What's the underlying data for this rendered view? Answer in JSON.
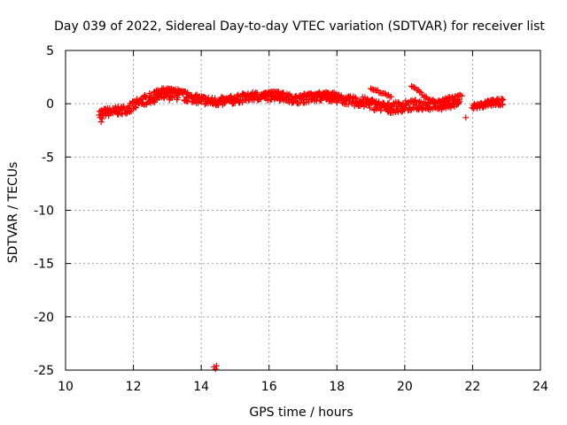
{
  "chart_data": {
    "type": "scatter",
    "title": "Day 039 of 2022, Sidereal Day-to-day VTEC variation (SDTVAR) for receiver list",
    "xlabel": "GPS time / hours",
    "ylabel": "SDTVAR / TECUs",
    "xlim": [
      10,
      24
    ],
    "ylim": [
      -25,
      5
    ],
    "xticks": [
      10,
      12,
      14,
      16,
      18,
      20,
      22,
      24
    ],
    "yticks": [
      5,
      0,
      -5,
      -10,
      -15,
      -20,
      -25
    ],
    "x_tick_labels": [
      "10",
      "12",
      "14",
      "16",
      "18",
      "20",
      "22",
      "24"
    ],
    "y_tick_labels": [
      "5",
      "0",
      "-5",
      "-10",
      "-15",
      "-20",
      "-25"
    ],
    "grid": true,
    "marker": "+",
    "series": [
      {
        "name": "SDTVAR",
        "color": "#ff0000",
        "trend": {
          "x": [
            11.0,
            11.2,
            11.5,
            11.8,
            12.0,
            12.3,
            12.6,
            12.9,
            13.2,
            13.5,
            13.8,
            14.0,
            14.3,
            14.6,
            15.0,
            15.3,
            15.6,
            15.9,
            16.2,
            16.5,
            16.8,
            17.1,
            17.4,
            17.7,
            18.0,
            18.3,
            18.6,
            18.9,
            19.2,
            19.5,
            19.8,
            20.1,
            20.4,
            20.7,
            21.0,
            21.3,
            21.6
          ],
          "y": [
            -0.9,
            -0.8,
            -0.7,
            -0.5,
            -0.2,
            0.3,
            0.6,
            0.8,
            0.9,
            0.7,
            0.5,
            0.4,
            0.2,
            0.2,
            0.4,
            0.6,
            0.7,
            0.7,
            0.8,
            0.6,
            0.4,
            0.5,
            0.6,
            0.7,
            0.5,
            0.3,
            0.2,
            0.1,
            -0.2,
            -0.4,
            -0.3,
            -0.2,
            -0.1,
            -0.1,
            -0.2,
            0.0,
            0.1
          ],
          "spread": [
            0.4,
            0.4,
            0.4,
            0.4,
            0.5,
            0.5,
            0.5,
            0.5,
            0.5,
            0.5,
            0.4,
            0.4,
            0.4,
            0.4,
            0.4,
            0.4,
            0.4,
            0.4,
            0.4,
            0.4,
            0.4,
            0.4,
            0.4,
            0.4,
            0.4,
            0.4,
            0.5,
            0.5,
            0.5,
            0.5,
            0.5,
            0.5,
            0.5,
            0.5,
            0.4,
            0.4,
            0.4
          ]
        },
        "trend2": {
          "x": [
            22.0,
            22.3,
            22.6,
            22.9
          ],
          "y": [
            -0.3,
            -0.1,
            0.1,
            0.2
          ],
          "spread": [
            0.3,
            0.3,
            0.3,
            0.3
          ]
        },
        "upper_arcs": [
          {
            "x": [
              12.6,
              12.8,
              13.0,
              13.2,
              13.4,
              13.6
            ],
            "y": [
              1.0,
              1.3,
              1.4,
              1.3,
              1.2,
              1.0
            ]
          },
          {
            "x": [
              15.8,
              16.0,
              16.2,
              16.4
            ],
            "y": [
              0.9,
              1.0,
              1.1,
              0.9
            ]
          },
          {
            "x": [
              17.0,
              17.5,
              18.0
            ],
            "y": [
              0.8,
              1.0,
              0.9
            ]
          },
          {
            "x": [
              19.0,
              19.2,
              19.4,
              19.6
            ],
            "y": [
              1.4,
              1.2,
              1.0,
              0.6
            ]
          },
          {
            "x": [
              20.2,
              20.3,
              20.4,
              20.5,
              20.6,
              20.8,
              21.0
            ],
            "y": [
              1.7,
              1.5,
              1.2,
              0.9,
              0.6,
              0.3,
              0.1
            ]
          },
          {
            "x": [
              21.0,
              21.2,
              21.4,
              21.7
            ],
            "y": [
              0.2,
              0.4,
              0.6,
              0.8
            ]
          }
        ],
        "outliers": {
          "x": [
            11.05,
            11.08,
            21.8,
            14.38,
            14.42,
            14.45
          ],
          "y": [
            -1.7,
            -1.4,
            -1.3,
            -24.7,
            -24.9,
            -24.6
          ]
        }
      }
    ]
  }
}
